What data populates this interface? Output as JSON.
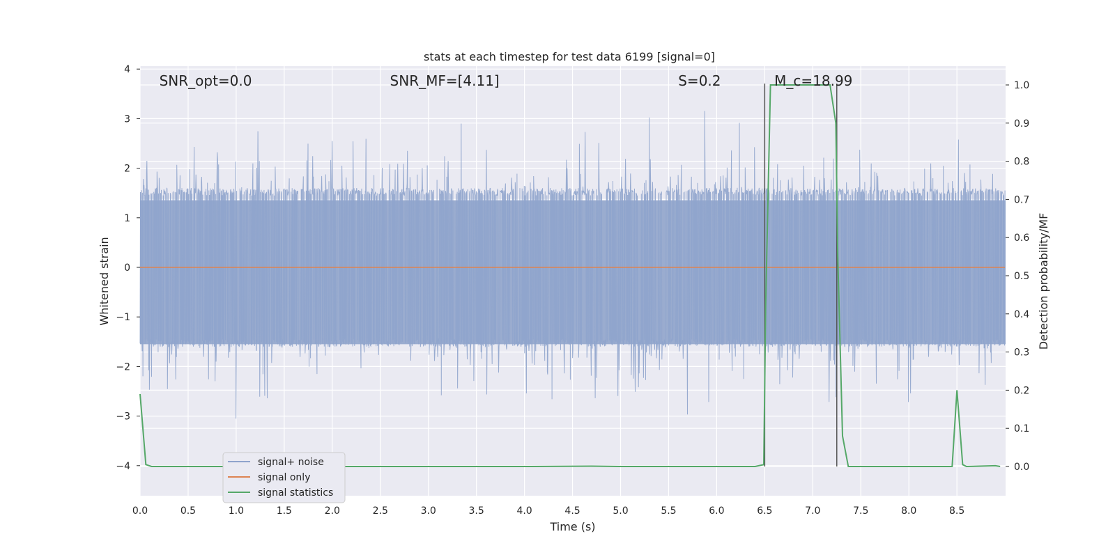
{
  "chart_data": {
    "type": "line",
    "title": "stats at each timestep for test data 6199 [signal=0]",
    "xlabel": "Time (s)",
    "ylabel": "Whitened strain",
    "y2label": "Detection probability/MF",
    "xlim": [
      0.0,
      9.0
    ],
    "ylim": [
      -4.4,
      4.05
    ],
    "y2lim": [
      -0.05,
      1.03
    ],
    "xticks": [
      0.0,
      0.5,
      1.0,
      1.5,
      2.0,
      2.5,
      3.0,
      3.5,
      4.0,
      4.5,
      5.0,
      5.5,
      6.0,
      6.5,
      7.0,
      7.5,
      8.0,
      8.5
    ],
    "xtick_labels": [
      "0.0",
      "0.5",
      "1.0",
      "1.5",
      "2.0",
      "2.5",
      "3.0",
      "3.5",
      "4.0",
      "4.5",
      "5.0",
      "5.5",
      "6.0",
      "6.5",
      "7.0",
      "7.5",
      "8.0",
      "8.5"
    ],
    "yticks": [
      4,
      3,
      2,
      1,
      0,
      -1,
      -2,
      -3,
      -4
    ],
    "ytick_labels": [
      "4",
      "3",
      "2",
      "1",
      "0",
      "−1",
      "−2",
      "−3",
      "−4"
    ],
    "y2ticks": [
      1.0,
      0.9,
      0.8,
      0.7,
      0.6,
      0.5,
      0.4,
      0.3,
      0.2,
      0.1,
      0.0
    ],
    "y2tick_labels": [
      "1.0",
      "0.9",
      "0.8",
      "0.7",
      "0.6",
      "0.5",
      "0.4",
      "0.3",
      "0.2",
      "0.1",
      "0.0"
    ],
    "grid": true,
    "legend_position": "lower-left",
    "annotations": [
      {
        "key": "snr_opt",
        "text": "SNR_opt=0.0",
        "x": 0.2
      },
      {
        "key": "snr_mf",
        "text": "SNR_MF=[4.11]",
        "x": 2.6
      },
      {
        "key": "s",
        "text": "S=0.2",
        "x": 5.6
      },
      {
        "key": "mc",
        "text": "M_c=18.99",
        "x": 6.6
      }
    ],
    "vlines": [
      6.5,
      7.25
    ],
    "noise": {
      "description_free": true,
      "samples": 2400,
      "seed": 6199,
      "core_amplitude": 1.45,
      "peak_amplitude": 3.4
    },
    "series": [
      {
        "name": "signal+ noise",
        "color": "#8fa4cc",
        "axis": "left"
      },
      {
        "name": "signal only",
        "color": "#dd8452",
        "axis": "left",
        "x": [
          0.0,
          9.0
        ],
        "y": [
          0.0,
          0.0
        ]
      },
      {
        "name": "signal statistics",
        "color": "#55a868",
        "axis": "right",
        "x": [
          0.0,
          0.06,
          0.12,
          0.5,
          1.0,
          2.0,
          3.0,
          4.0,
          4.7,
          5.0,
          6.0,
          6.4,
          6.49,
          6.51,
          6.56,
          6.62,
          7.0,
          7.18,
          7.24,
          7.26,
          7.31,
          7.37,
          7.5,
          8.0,
          8.45,
          8.5,
          8.56,
          8.6,
          8.9,
          8.95
        ],
        "y": [
          0.19,
          0.005,
          0.0,
          0.0,
          0.0,
          0.0,
          0.0,
          0.0,
          0.001,
          0.0,
          0.0,
          0.0,
          0.005,
          0.42,
          1.0,
          1.0,
          1.0,
          1.0,
          0.9,
          0.55,
          0.08,
          0.0,
          0.0,
          0.0,
          0.0,
          0.2,
          0.005,
          0.0,
          0.002,
          0.0
        ]
      }
    ]
  }
}
